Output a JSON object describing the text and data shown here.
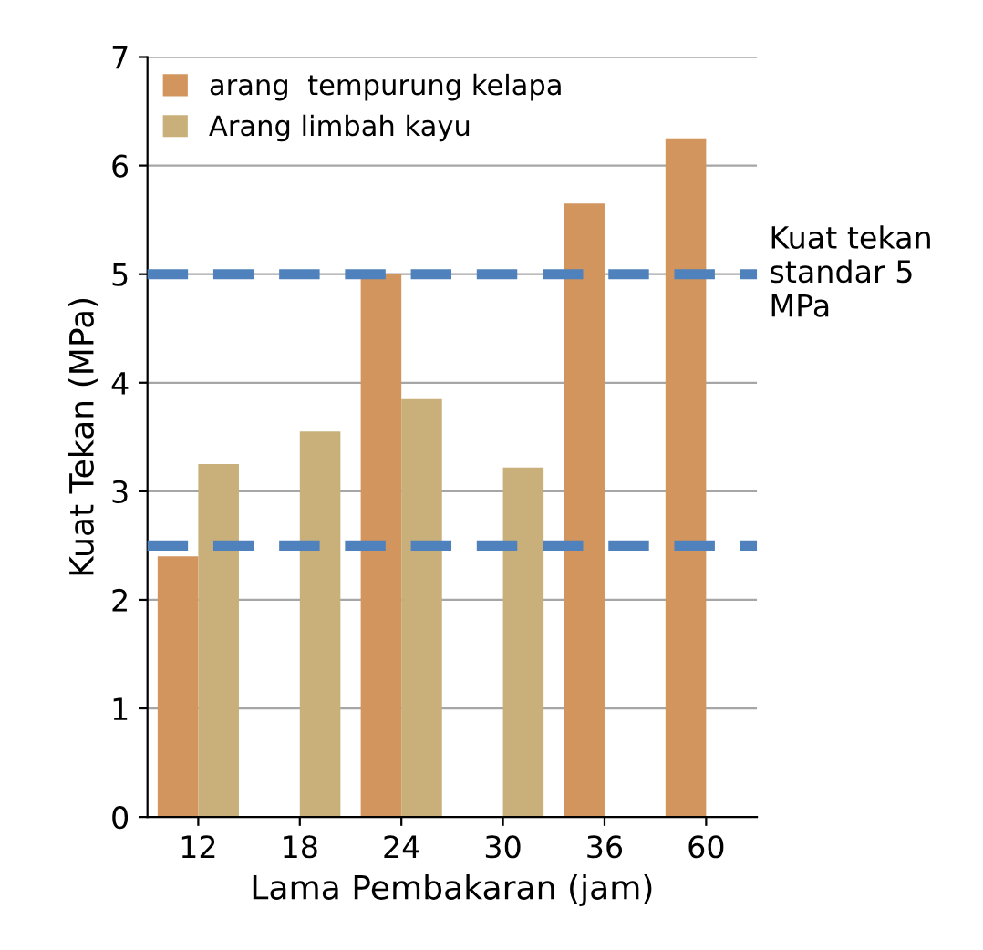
{
  "chart_data": {
    "type": "bar",
    "xlabel": "Lama Pembakaran (jam)",
    "ylabel": "Kuat Tekan (MPa)",
    "categories": [
      "12",
      "18",
      "24",
      "30",
      "36",
      "60"
    ],
    "series": [
      {
        "name": "arang  tempurung kelapa",
        "color": "#d2955e",
        "values": [
          2.4,
          null,
          5.0,
          null,
          5.65,
          6.25
        ]
      },
      {
        "name": "Arang limbah kayu",
        "color": "#c9b07a",
        "values": [
          3.25,
          3.55,
          3.85,
          3.22,
          null,
          null
        ]
      }
    ],
    "ylim": [
      0,
      7
    ],
    "yticks": [
      0,
      1,
      2,
      3,
      4,
      5,
      6,
      7
    ],
    "grid": "y",
    "legend": "top left",
    "ref_lines": [
      {
        "axis": "y",
        "value": 5,
        "label": "Kuat tekan standar 5 MPa",
        "color": "#4f81bd",
        "line_style": "dashed"
      },
      {
        "axis": "y",
        "value": 2.5,
        "color": "#4f81bd",
        "line_style": "dashed"
      }
    ]
  }
}
